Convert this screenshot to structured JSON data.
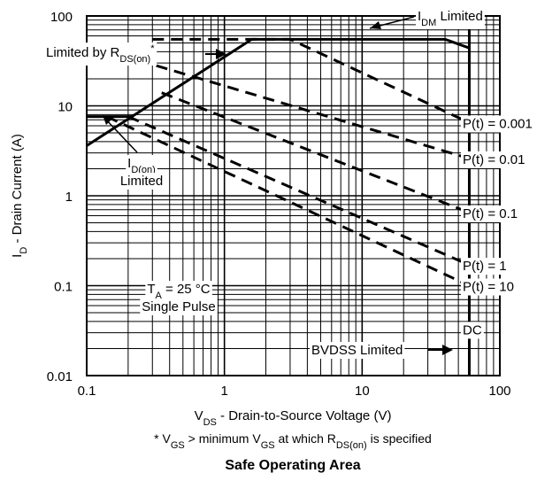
{
  "chart_data": {
    "type": "line",
    "title": "Safe Operating Area",
    "scale": "log-log",
    "grid": true,
    "xlim": [
      0.1,
      100
    ],
    "ylim": [
      0.01,
      100
    ],
    "x_ticks": [
      "0.1",
      "1",
      "10",
      "100"
    ],
    "y_ticks": [
      "0.01",
      "0.1",
      "1",
      "10",
      "100"
    ],
    "xlabel": {
      "pre": "V",
      "sub": "DS",
      "post": " - Drain-to-Source Voltage (V)"
    },
    "ylabel": {
      "pre": "I",
      "sub": "D",
      "post": " - Drain Current (A)"
    },
    "footnote": [
      {
        "t": "* V"
      },
      {
        "t": "GS",
        "sub": true
      },
      {
        "t": " > minimum V"
      },
      {
        "t": "GS",
        "sub": true
      },
      {
        "t": " at which R"
      },
      {
        "t": "DS(on)",
        "sub": true
      },
      {
        "t": " is specified"
      }
    ],
    "annotations": {
      "idm": {
        "pre": "I",
        "sub": "DM",
        "post": " Limited"
      },
      "rds": {
        "pre": "Limited by R",
        "sub": "DS(on)",
        "post": "*"
      },
      "idon": {
        "pre": "I",
        "sub": "D(on)",
        "line2": "Limited"
      },
      "ta": {
        "pre": "T",
        "sub": "A",
        "post": " = 25 °C",
        "line2": "Single Pulse"
      },
      "bvdss": "BVDSS Limited"
    },
    "limits": {
      "id_on": 7.6,
      "rds_line": [
        {
          "x": 0.1,
          "y": 3.6
        },
        {
          "x": 1.58,
          "y": 55
        }
      ],
      "idm": 55,
      "bvdss": 60
    },
    "series": [
      {
        "name": "P(t) = 0.001",
        "values": [
          {
            "x": 1.58,
            "y": 55
          },
          {
            "x": 40,
            "y": 55
          },
          {
            "x": 60,
            "y": 44
          }
        ]
      },
      {
        "name": "P(t) = 0.01",
        "values": [
          {
            "x": 0.3,
            "y": 55
          },
          {
            "x": 3,
            "y": 55
          },
          {
            "x": 60,
            "y": 6.5
          }
        ]
      },
      {
        "name": "P(t) = 0.1",
        "values": [
          {
            "x": 0.32,
            "y": 28
          },
          {
            "x": 60,
            "y": 2.6
          }
        ]
      },
      {
        "name": "P(t) = 1",
        "values": [
          {
            "x": 0.35,
            "y": 14
          },
          {
            "x": 60,
            "y": 0.65
          }
        ]
      },
      {
        "name": "P(t) = 10",
        "values": [
          {
            "x": 0.2,
            "y": 7.6
          },
          {
            "x": 60,
            "y": 0.17
          }
        ]
      },
      {
        "name": "DC",
        "values": [
          {
            "x": 0.14,
            "y": 7.6
          },
          {
            "x": 60,
            "y": 0.1
          }
        ]
      }
    ],
    "curve_labels": [
      {
        "text": "P(t) = 0.001",
        "y": 6.5
      },
      {
        "text": "P(t) = 0.01",
        "y": 2.6
      },
      {
        "text": "P(t) = 0.1",
        "y": 0.65
      },
      {
        "text": "P(t) = 1",
        "y": 0.17
      },
      {
        "text": "P(t) = 10",
        "y": 0.1
      },
      {
        "text": "DC",
        "y": 0.033
      }
    ]
  }
}
